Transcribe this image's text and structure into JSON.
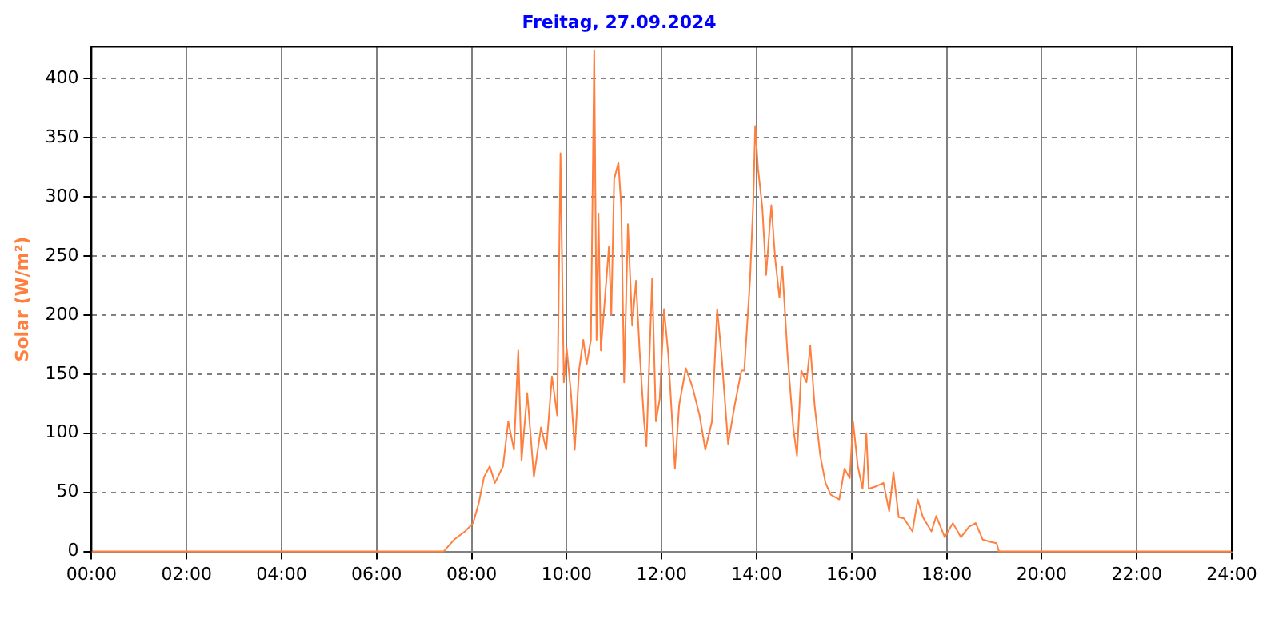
{
  "chart_data": {
    "type": "line",
    "title": "Freitag, 27.09.2024",
    "ylabel": "Solar (W/m²)",
    "x": [
      0,
      7.41,
      7.63,
      7.86,
      8.03,
      8.15,
      8.26,
      8.38,
      8.49,
      8.66,
      8.77,
      8.89,
      8.98,
      9.05,
      9.17,
      9.31,
      9.46,
      9.57,
      9.69,
      9.8,
      9.87,
      9.94,
      10.0,
      10.09,
      10.17,
      10.26,
      10.35,
      10.42,
      10.51,
      10.58,
      10.63,
      10.67,
      10.72,
      10.89,
      10.94,
      11.0,
      11.09,
      11.15,
      11.21,
      11.29,
      11.38,
      11.46,
      11.54,
      11.63,
      11.68,
      11.8,
      11.88,
      11.96,
      12.05,
      12.14,
      12.28,
      12.37,
      12.51,
      12.65,
      12.8,
      12.92,
      13.06,
      13.17,
      13.26,
      13.4,
      13.54,
      13.68,
      13.74,
      13.86,
      13.93,
      13.97,
      14.03,
      14.12,
      14.2,
      14.31,
      14.39,
      14.48,
      14.54,
      14.65,
      14.77,
      14.85,
      14.94,
      15.05,
      15.13,
      15.22,
      15.34,
      15.45,
      15.56,
      15.74,
      15.85,
      15.96,
      16.03,
      16.13,
      16.23,
      16.31,
      16.36,
      16.51,
      16.67,
      16.79,
      16.88,
      16.99,
      17.1,
      17.28,
      17.39,
      17.5,
      17.68,
      17.78,
      17.96,
      18.13,
      18.3,
      18.47,
      18.61,
      18.76,
      18.93,
      19.05,
      19.1,
      24
    ],
    "series": [
      {
        "color": "#ff7f3f",
        "values": [
          0,
          0,
          10,
          17,
          24,
          41,
          63,
          72,
          58,
          72,
          110,
          86,
          170,
          77,
          134,
          63,
          105,
          86,
          148,
          115,
          337,
          143,
          172,
          134,
          86,
          153,
          179,
          158,
          179,
          424,
          179,
          286,
          170,
          258,
          200,
          315,
          329,
          291,
          143,
          277,
          191,
          229,
          167,
          110,
          89,
          231,
          110,
          129,
          205,
          167,
          70,
          124,
          155,
          139,
          115,
          86,
          110,
          205,
          167,
          91,
          124,
          153,
          153,
          229,
          296,
          360,
          324,
          291,
          234,
          293,
          248,
          215,
          241,
          167,
          105,
          81,
          153,
          143,
          174,
          124,
          81,
          58,
          48,
          44,
          70,
          62,
          110,
          72,
          53,
          100,
          53,
          55,
          58,
          34,
          67,
          29,
          28,
          17,
          44,
          29,
          17,
          30,
          12,
          24,
          12,
          21,
          24,
          10,
          8,
          7,
          0,
          0
        ]
      }
    ],
    "xlim": [
      0,
      24
    ],
    "xticks": [
      {
        "value": 0,
        "label": "00:00"
      },
      {
        "value": 2,
        "label": "02:00"
      },
      {
        "value": 4,
        "label": "04:00"
      },
      {
        "value": 6,
        "label": "06:00"
      },
      {
        "value": 8,
        "label": "08:00"
      },
      {
        "value": 10,
        "label": "10:00"
      },
      {
        "value": 12,
        "label": "12:00"
      },
      {
        "value": 14,
        "label": "14:00"
      },
      {
        "value": 16,
        "label": "16:00"
      },
      {
        "value": 18,
        "label": "18:00"
      },
      {
        "value": 20,
        "label": "20:00"
      },
      {
        "value": 22,
        "label": "22:00"
      },
      {
        "value": 24,
        "label": "24:00"
      }
    ],
    "ylim": [
      0,
      427
    ],
    "yticks": [
      0,
      50,
      100,
      150,
      200,
      250,
      300,
      350,
      400
    ],
    "grid": true,
    "legend": false,
    "marker": "none",
    "line_style": "solid"
  }
}
